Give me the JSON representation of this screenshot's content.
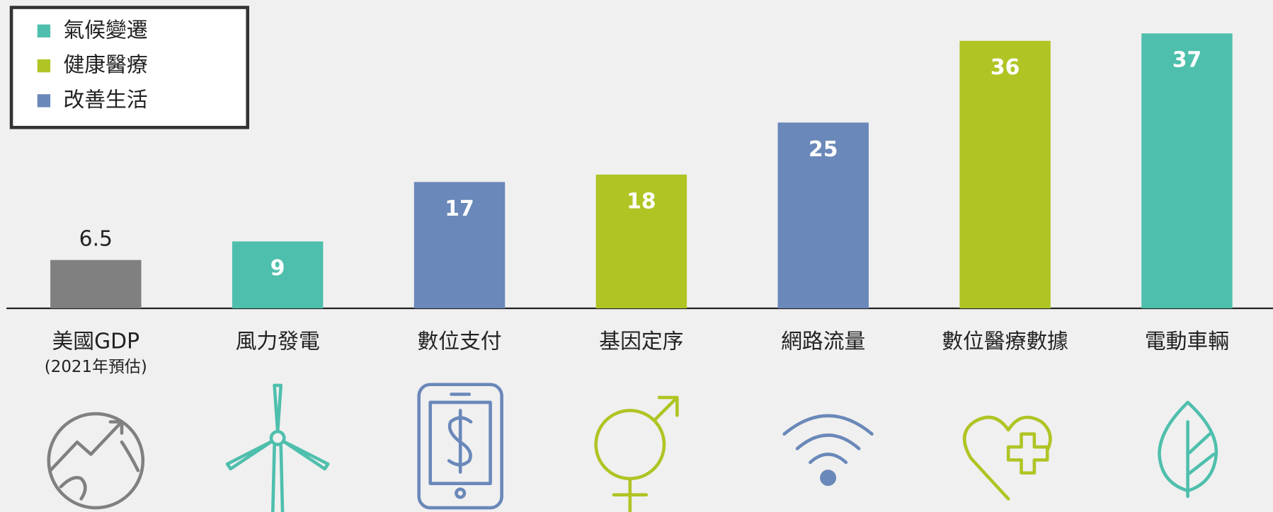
{
  "chart_data": {
    "type": "bar",
    "categories": [
      "美國GDP",
      "風力發電",
      "數位支付",
      "基因定序",
      "網路流量",
      "數位醫療數據",
      "電動車輛"
    ],
    "annotation": "(2021年預估)",
    "values": [
      6.5,
      9,
      17,
      18,
      25,
      36,
      37
    ],
    "colors": [
      "#808080",
      "#4fbfad",
      "#6a88b9",
      "#b0c424",
      "#6a88b9",
      "#b0c424",
      "#4fbfad"
    ],
    "legend": [
      {
        "name": "氣候變遷",
        "color": "#4fbfad"
      },
      {
        "name": "健康醫療",
        "color": "#b0c424"
      },
      {
        "name": "改善生活",
        "color": "#6a88b9"
      }
    ],
    "legend_position": "upper left"
  }
}
